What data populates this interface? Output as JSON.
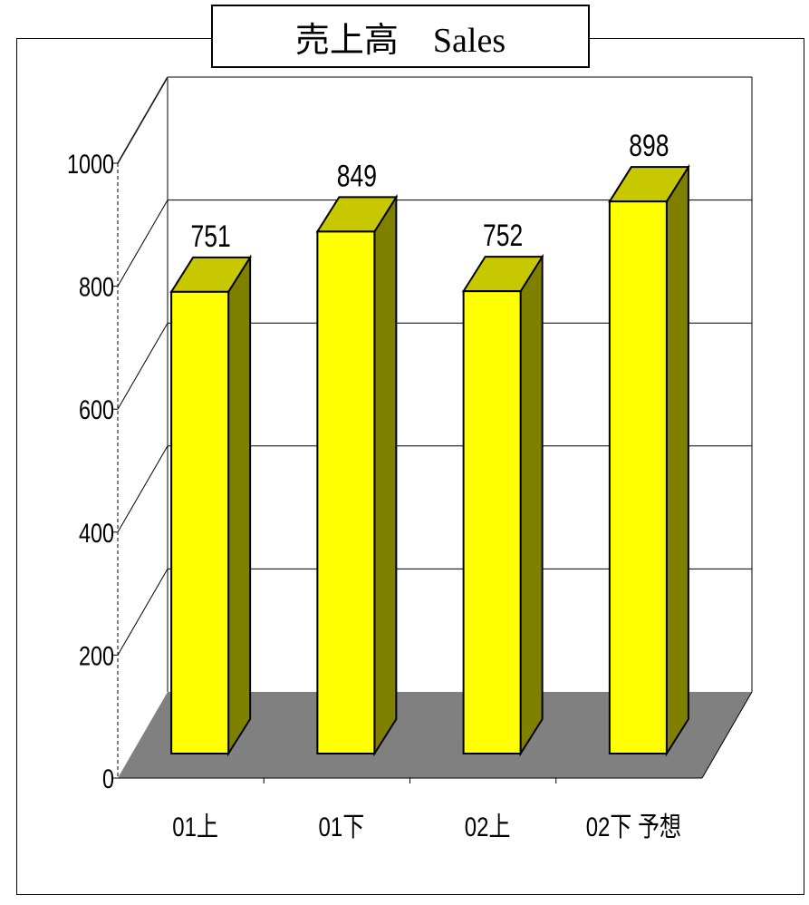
{
  "chart_data": {
    "type": "bar",
    "title": "売上高　Sales",
    "categories": [
      "01上",
      "01下",
      "02上",
      "02下 予想"
    ],
    "values": [
      751,
      849,
      752,
      898
    ],
    "ylim": [
      0,
      1000
    ],
    "yticks": [
      0,
      200,
      400,
      600,
      800,
      1000
    ],
    "grid": true,
    "style": "3d",
    "colors": {
      "front": "#ffff00",
      "top": "#c8c800",
      "side": "#808000",
      "floor": "#808080"
    }
  }
}
